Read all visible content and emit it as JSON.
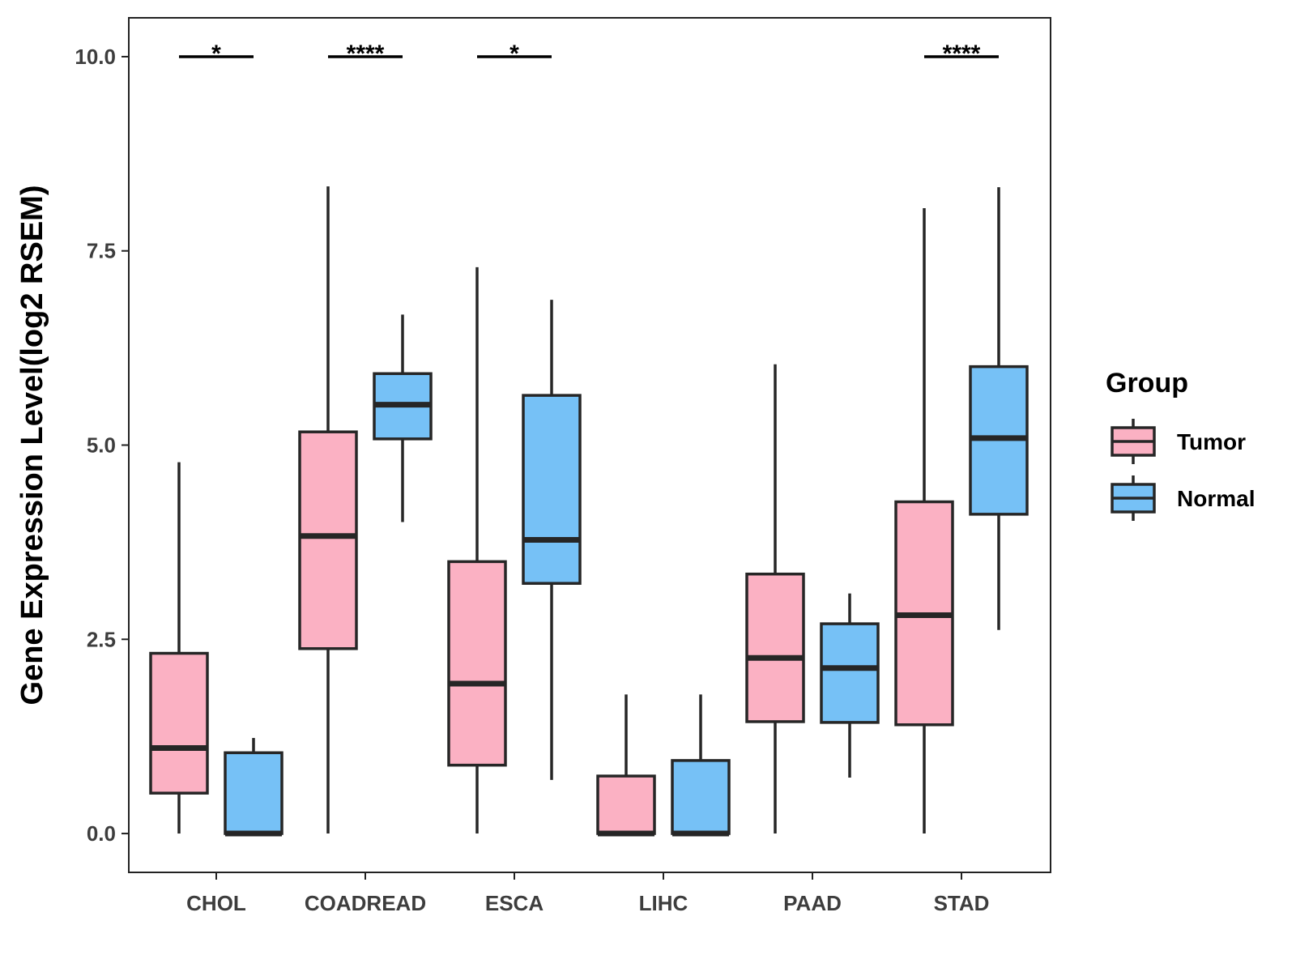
{
  "chart_data": {
    "type": "boxplot",
    "title": "",
    "xlabel": "",
    "ylabel": "Gene Expression Level(log2 RSEM)",
    "ylim": [
      -0.5,
      10.5
    ],
    "yticks": [
      0.0,
      2.5,
      5.0,
      7.5,
      10.0
    ],
    "ytick_labels": [
      "0.0",
      "2.5",
      "5.0",
      "7.5",
      "10.0"
    ],
    "categories": [
      "CHOL",
      "COADREAD",
      "ESCA",
      "LIHC",
      "PAAD",
      "STAD"
    ],
    "series": [
      {
        "name": "Tumor",
        "color": "#FBB1C3",
        "boxes": [
          {
            "min": 0.0,
            "q1": 0.52,
            "median": 1.1,
            "q3": 2.32,
            "max": 4.78
          },
          {
            "min": 0.0,
            "q1": 2.38,
            "median": 3.83,
            "q3": 5.17,
            "max": 8.33
          },
          {
            "min": 0.0,
            "q1": 0.88,
            "median": 1.93,
            "q3": 3.5,
            "max": 7.29
          },
          {
            "min": 0.0,
            "q1": 0.0,
            "median": 0.0,
            "q3": 0.74,
            "max": 1.79
          },
          {
            "min": 0.0,
            "q1": 1.44,
            "median": 2.26,
            "q3": 3.34,
            "max": 6.04
          },
          {
            "min": 0.0,
            "q1": 1.4,
            "median": 2.81,
            "q3": 4.27,
            "max": 8.05
          }
        ]
      },
      {
        "name": "Normal",
        "color": "#76C1F6",
        "boxes": [
          {
            "min": 0.0,
            "q1": 0.0,
            "median": 0.0,
            "q3": 1.04,
            "max": 1.23
          },
          {
            "min": 4.01,
            "q1": 5.08,
            "median": 5.52,
            "q3": 5.92,
            "max": 6.68
          },
          {
            "min": 0.69,
            "q1": 3.22,
            "median": 3.78,
            "q3": 5.64,
            "max": 6.87
          },
          {
            "min": 0.0,
            "q1": 0.0,
            "median": 0.0,
            "q3": 0.94,
            "max": 1.79
          },
          {
            "min": 0.72,
            "q1": 1.43,
            "median": 2.13,
            "q3": 2.7,
            "max": 3.09
          },
          {
            "min": 2.62,
            "q1": 4.11,
            "median": 5.09,
            "q3": 6.01,
            "max": 8.32
          }
        ]
      }
    ],
    "significance": [
      {
        "category": "CHOL",
        "label": "*",
        "y": 10.0
      },
      {
        "category": "COADREAD",
        "label": "****",
        "y": 10.0
      },
      {
        "category": "ESCA",
        "label": "*",
        "y": 10.0
      },
      {
        "category": "LIHC",
        "label": "",
        "y": 10.0
      },
      {
        "category": "PAAD",
        "label": "",
        "y": 10.0
      },
      {
        "category": "STAD",
        "label": "****",
        "y": 10.0
      }
    ],
    "legend": {
      "title": "Group",
      "position": "right",
      "items": [
        {
          "label": "Tumor",
          "color": "#FBB1C3"
        },
        {
          "label": "Normal",
          "color": "#76C1F6"
        }
      ]
    },
    "style": {
      "box_stroke": "#262626",
      "axis_color": "#222222",
      "background": "#ffffff"
    }
  }
}
